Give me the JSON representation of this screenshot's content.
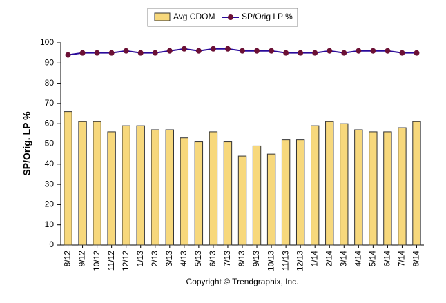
{
  "chart_data": {
    "type": "bar-line",
    "y_label": "SP/Orig. LP %",
    "footer": "Copyright © Trendgraphix, Inc.",
    "categories": [
      "8/12",
      "9/12",
      "10/12",
      "11/12",
      "12/12",
      "1/13",
      "2/13",
      "3/13",
      "4/13",
      "5/13",
      "6/13",
      "7/13",
      "8/13",
      "9/13",
      "10/13",
      "11/13",
      "12/13",
      "1/14",
      "2/14",
      "3/14",
      "4/14",
      "5/14",
      "6/14",
      "7/14",
      "8/14"
    ],
    "series": [
      {
        "name": "Avg CDOM",
        "type": "bar",
        "color": "#f7d87c",
        "values": [
          66,
          61,
          61,
          56,
          59,
          59,
          57,
          57,
          53,
          51,
          56,
          51,
          44,
          49,
          45,
          52,
          52,
          59,
          61,
          60,
          57,
          56,
          56,
          58,
          61
        ]
      },
      {
        "name": "SP/Orig LP %",
        "type": "line",
        "color": "#2a0a9a",
        "marker_color": "#6b1035",
        "values": [
          94,
          95,
          95,
          95,
          96,
          95,
          95,
          96,
          97,
          96,
          97,
          97,
          96,
          96,
          96,
          95,
          95,
          95,
          96,
          95,
          96,
          96,
          96,
          95,
          95
        ]
      }
    ],
    "ylim": [
      0,
      100
    ],
    "yticks": [
      0,
      10,
      20,
      30,
      40,
      50,
      60,
      70,
      80,
      90,
      100
    ],
    "grid": false,
    "legend": "top"
  }
}
